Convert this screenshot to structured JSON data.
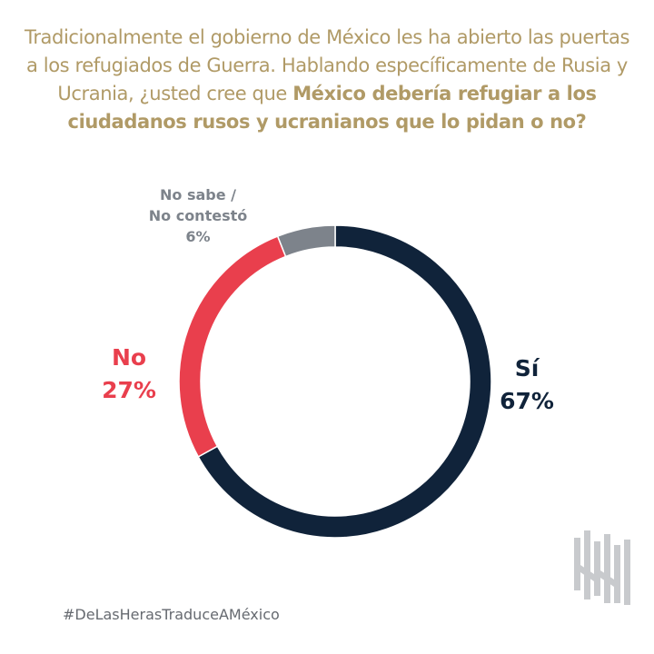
{
  "title": {
    "normal": "Tradicionalmente el gobierno de México les ha abierto las puertas a los refugiados de Guerra. Hablando específicamente de Rusia y Ucrania, ¿usted cree que ",
    "bold": "México debería refugiar a los ciudadanos rusos y ucranianos que lo pidan o no?"
  },
  "chart_data": {
    "type": "pie",
    "donut": true,
    "slices": [
      {
        "label": "Sí",
        "value": 67,
        "value_label": "67%",
        "color": "#10233a"
      },
      {
        "label": "No",
        "value": 27,
        "value_label": "27%",
        "color": "#e93f4d"
      },
      {
        "label_line1": "No sabe /",
        "label_line2": "No contestó",
        "value": 6,
        "value_label": "6%",
        "color": "#7d838b"
      }
    ],
    "start": "top",
    "direction": "clockwise"
  },
  "footer": {
    "hashtag": "#DeLasHerasTraduceAMéxico"
  },
  "colors": {
    "title": "#b09a66",
    "hashtag": "#666a70",
    "logo": "#c8cacd"
  },
  "logo": {
    "icon": "de-las-heras-logo-icon"
  }
}
